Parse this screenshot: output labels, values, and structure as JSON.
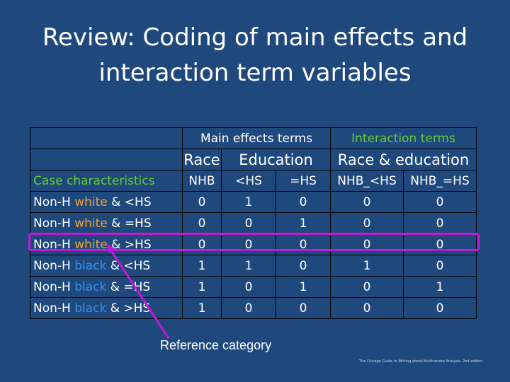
{
  "slide": {
    "title_line1": "Review: Coding of main effects and",
    "title_line2": "interaction term variables",
    "reference_label": "Reference category",
    "citation": "The Chicago Guide to Writing about Multivariate Analysis, 2nd edition"
  },
  "table": {
    "group_headers": {
      "main_effects": "Main effects terms",
      "interaction": "Interaction terms"
    },
    "sub_headers": {
      "race": "Race",
      "education": "Education",
      "race_education": "Race & education"
    },
    "columns": [
      "Case characteristics",
      "NHB",
      "<HS",
      "=HS",
      "NHB_<HS",
      "NHB_=HS"
    ],
    "rows": [
      {
        "prefix": "Non-H ",
        "race": "white",
        "suffix": " & <HS",
        "values": [
          "0",
          "1",
          "0",
          "0",
          "0"
        ]
      },
      {
        "prefix": "Non-H ",
        "race": "white",
        "suffix": " & =HS",
        "values": [
          "0",
          "0",
          "1",
          "0",
          "0"
        ]
      },
      {
        "prefix": "Non-H ",
        "race": "white",
        "suffix": " & >HS",
        "values": [
          "0",
          "0",
          "0",
          "0",
          "0"
        ]
      },
      {
        "prefix": "Non-H ",
        "race": "black",
        "suffix": " & <HS",
        "values": [
          "1",
          "1",
          "0",
          "1",
          "0"
        ]
      },
      {
        "prefix": "Non-H ",
        "race": "black",
        "suffix": " & =HS",
        "values": [
          "1",
          "0",
          "1",
          "0",
          "1"
        ]
      },
      {
        "prefix": "Non-H ",
        "race": "black",
        "suffix": " & >HS",
        "values": [
          "1",
          "0",
          "0",
          "0",
          "0"
        ]
      }
    ]
  },
  "colors": {
    "background": "#1f497d",
    "header_green": "#66cc33",
    "white_word": "#f2a23b",
    "black_word": "#3b8ef0",
    "highlight": "#c11ad4"
  }
}
